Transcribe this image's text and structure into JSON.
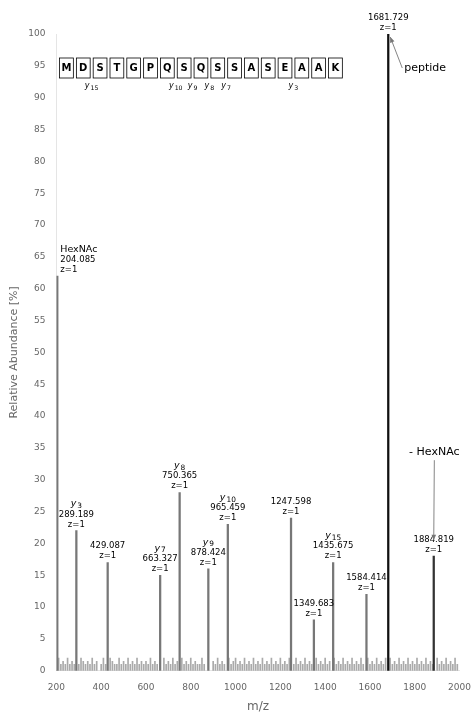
{
  "chart_data": {
    "type": "bar",
    "xlabel": "m/z",
    "ylabel": "Relative Abundance [%]",
    "xlim": [
      200,
      2000
    ],
    "xticks": [
      200,
      400,
      600,
      800,
      1000,
      1200,
      1400,
      1600,
      1800,
      2000
    ],
    "ylim": [
      0,
      100
    ],
    "yticks": [
      0,
      5,
      10,
      15,
      20,
      25,
      30,
      35,
      40,
      45,
      50,
      55,
      60,
      65,
      70,
      75,
      80,
      85,
      90,
      95,
      100
    ],
    "grid": false,
    "series": [
      {
        "color": "#aaaaaa",
        "x": [
          210,
          220,
          230,
          240,
          250,
          260,
          270,
          280,
          300,
          310,
          320,
          330,
          340,
          350,
          360,
          370,
          380,
          400,
          410,
          420,
          440,
          450,
          460,
          470,
          480,
          490,
          500,
          510,
          520,
          530,
          540,
          550,
          560,
          570,
          580,
          590,
          600,
          610,
          620,
          630,
          640,
          650,
          680,
          690,
          700,
          710,
          720,
          730,
          740,
          760,
          770,
          780,
          790,
          800,
          810,
          820,
          830,
          840,
          850,
          860,
          900,
          910,
          920,
          930,
          940,
          950,
          970,
          980,
          990,
          1000,
          1010,
          1020,
          1030,
          1040,
          1050,
          1060,
          1070,
          1080,
          1090,
          1100,
          1110,
          1120,
          1130,
          1140,
          1150,
          1160,
          1170,
          1180,
          1190,
          1200,
          1210,
          1220,
          1230,
          1240,
          1260,
          1270,
          1280,
          1290,
          1300,
          1310,
          1320,
          1330,
          1340,
          1360,
          1370,
          1380,
          1390,
          1400,
          1410,
          1420,
          1440,
          1450,
          1460,
          1470,
          1480,
          1490,
          1500,
          1510,
          1520,
          1530,
          1540,
          1550,
          1560,
          1570,
          1590,
          1600,
          1610,
          1620,
          1630,
          1640,
          1650,
          1660,
          1670,
          1690,
          1700,
          1710,
          1720,
          1730,
          1740,
          1750,
          1760,
          1770,
          1780,
          1790,
          1800,
          1810,
          1820,
          1830,
          1840,
          1850,
          1860,
          1870,
          1880,
          1900,
          1910,
          1920,
          1930,
          1940,
          1950,
          1960,
          1970,
          1980,
          1990
        ],
        "values": [
          2,
          1,
          1.5,
          1,
          2,
          1,
          1.5,
          1,
          1,
          2,
          1.5,
          1,
          1.5,
          1,
          2,
          1,
          1.5,
          1,
          2,
          1,
          2,
          1.5,
          1,
          1,
          2,
          1,
          1.5,
          1,
          2,
          1,
          1.5,
          1,
          2,
          1,
          1.5,
          1,
          1.5,
          1,
          2,
          1,
          1.5,
          1,
          2,
          1,
          1.5,
          1,
          2,
          1,
          1.5,
          2,
          1,
          1.5,
          1,
          2,
          1,
          1.5,
          1,
          1,
          2,
          1,
          1.5,
          1,
          2,
          1,
          1.5,
          1,
          2,
          1,
          1.5,
          2,
          1,
          1.5,
          1,
          2,
          1,
          1.5,
          1,
          2,
          1,
          1.5,
          1,
          2,
          1,
          1.5,
          1,
          2,
          1,
          1.5,
          1,
          2,
          1,
          1.5,
          1,
          2,
          1,
          2,
          1,
          1.5,
          1,
          2,
          1,
          1.5,
          1,
          2,
          1,
          1.5,
          1,
          2,
          1,
          1.5,
          2,
          1,
          1.5,
          1,
          2,
          1,
          1.5,
          1,
          2,
          1,
          1.5,
          1,
          2,
          1,
          2,
          1,
          1.5,
          1,
          2,
          1,
          1.5,
          1,
          2,
          2,
          1,
          1.5,
          1,
          2,
          1,
          1.5,
          1,
          2,
          1,
          1.5,
          1,
          2,
          1,
          1.5,
          1,
          2,
          1,
          1.5,
          1,
          2,
          1,
          1.5,
          1,
          2,
          1,
          1.5,
          1,
          2,
          1
        ]
      },
      {
        "x": [
          204.085,
          289.189,
          429.087,
          663.327,
          750.365,
          878.424,
          965.459,
          1247.598,
          1349.683,
          1435.675,
          1584.414,
          1681.729,
          1884.819
        ],
        "values": [
          62,
          22,
          17,
          15,
          28,
          16,
          23,
          24,
          8,
          17,
          12,
          100,
          18
        ],
        "colors": [
          "#777777",
          "#777777",
          "#777777",
          "#777777",
          "#777777",
          "#777777",
          "#777777",
          "#777777",
          "#777777",
          "#777777",
          "#777777",
          "#111111",
          "#333333"
        ],
        "labels": [
          [
            "HexNAc",
            "204.085",
            "z=1"
          ],
          [
            "y3",
            "289.189",
            "z=1"
          ],
          [
            "429.087",
            "z=1"
          ],
          [
            "y7",
            "663.327",
            "z=1"
          ],
          [
            "y8",
            "750.365",
            "z=1"
          ],
          [
            "y9",
            "878.424",
            "z=1"
          ],
          [
            "y10",
            "965.459",
            "z=1"
          ],
          [
            "1247.598",
            "z=1"
          ],
          [
            "1349.683",
            "z=1"
          ],
          [
            "y15",
            "1435.675",
            "z=1"
          ],
          [
            "1584.414",
            "z=1"
          ],
          [
            "1681.729",
            "z=1"
          ],
          [
            "1884.819",
            "z=1"
          ]
        ]
      }
    ],
    "annotations": [
      {
        "text": "peptide",
        "x": 1681.729,
        "y": 100
      },
      {
        "text": "- HexNAc",
        "x": 1884.819,
        "y": 18
      }
    ],
    "sequence": [
      "M",
      "D",
      "S",
      "T",
      "G",
      "P",
      "Q",
      "S",
      "Q",
      "S",
      "S",
      "A",
      "S",
      "E",
      "A",
      "A",
      "K"
    ],
    "sequence_labels": [
      null,
      "y15",
      null,
      null,
      null,
      null,
      "y10",
      "y9",
      "y8",
      "y7",
      null,
      null,
      null,
      "y3",
      null,
      null,
      null
    ]
  }
}
